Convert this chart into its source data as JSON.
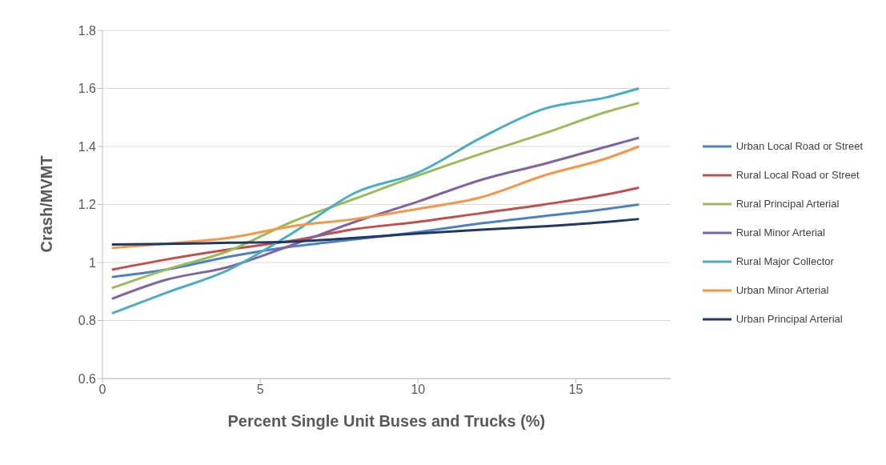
{
  "chart_data": {
    "type": "line",
    "xlabel": "Percent Single Unit Buses and Trucks (%)",
    "ylabel": "Crash/MVMT",
    "x": [
      0.3,
      2,
      4,
      6,
      8,
      10,
      12,
      14,
      16,
      17
    ],
    "series": [
      {
        "name": "Urban Local Road or Street",
        "color": "#4f81bd",
        "values": [
          0.95,
          0.975,
          1.02,
          1.055,
          1.08,
          1.105,
          1.135,
          1.16,
          1.185,
          1.2
        ]
      },
      {
        "name": "Rural Local Road or Street",
        "color": "#c0504d",
        "values": [
          0.975,
          1.01,
          1.045,
          1.075,
          1.115,
          1.14,
          1.17,
          1.2,
          1.235,
          1.258
        ]
      },
      {
        "name": "Rural Principal Arterial",
        "color": "#9bbb59",
        "values": [
          0.912,
          0.975,
          1.04,
          1.14,
          1.22,
          1.3,
          1.375,
          1.445,
          1.52,
          1.55
        ]
      },
      {
        "name": "Rural Minor Arterial",
        "color": "#8064a2",
        "values": [
          0.875,
          0.94,
          0.985,
          1.06,
          1.14,
          1.21,
          1.285,
          1.34,
          1.4,
          1.43
        ]
      },
      {
        "name": "Rural Major Collector",
        "color": "#4bacc6",
        "values": [
          0.825,
          0.895,
          0.975,
          1.1,
          1.24,
          1.31,
          1.43,
          1.53,
          1.57,
          1.6
        ]
      },
      {
        "name": "Urban Minor Arterial",
        "color": "#f79646",
        "values": [
          1.05,
          1.065,
          1.085,
          1.125,
          1.15,
          1.185,
          1.225,
          1.3,
          1.36,
          1.4
        ]
      },
      {
        "name": "Urban Principal Arterial",
        "color": "#1f3864",
        "values": [
          1.062,
          1.064,
          1.068,
          1.072,
          1.085,
          1.1,
          1.113,
          1.125,
          1.14,
          1.15
        ]
      }
    ],
    "xlim": [
      0,
      18
    ],
    "xticks": [
      0,
      5,
      10,
      15
    ],
    "ylim": [
      0.6,
      1.8
    ],
    "yticks": [
      0.6,
      0.8,
      1,
      1.2,
      1.4,
      1.6,
      1.8
    ],
    "grid": "y",
    "legend": "right",
    "marker": "none",
    "line_style": "solid"
  }
}
